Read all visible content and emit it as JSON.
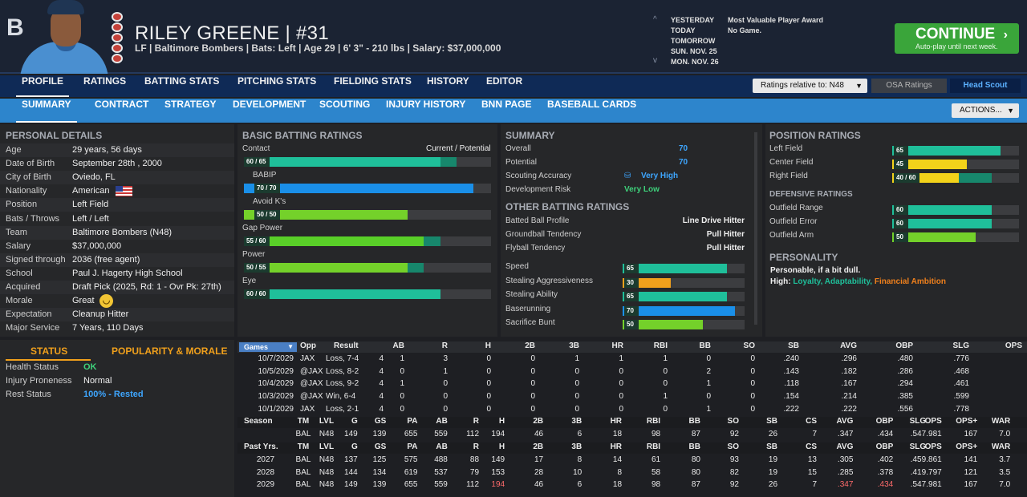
{
  "header": {
    "player_name": "RILEY GREENE  |  #31",
    "player_meta": "LF | Baltimore Bombers  |  Bats: Left  |  Age 29  |  6' 3\" - 210 lbs  |  Salary: $37,000,000",
    "logo": "B",
    "dates": [
      "YESTERDAY",
      "TODAY",
      "TOMORROW",
      "SUN. NOV. 25",
      "MON. NOV. 26"
    ],
    "events": [
      "Most Valuable Player Award",
      "No Game."
    ],
    "continue_label": "CONTINUE",
    "continue_sub": "Auto-play until next week."
  },
  "nav1": {
    "tabs": [
      "PROFILE",
      "RATINGS",
      "BATTING STATS",
      "PITCHING STATS",
      "FIELDING STATS",
      "HISTORY",
      "EDITOR"
    ],
    "ratings_relative": "Ratings relative to: N48",
    "osa": "OSA Ratings",
    "head_scout": "Head Scout"
  },
  "nav2": {
    "tabs": [
      "SUMMARY",
      "CONTRACT",
      "STRATEGY",
      "DEVELOPMENT",
      "SCOUTING",
      "INJURY HISTORY",
      "BNN PAGE",
      "BASEBALL CARDS"
    ],
    "actions": "ACTIONS..."
  },
  "personal": {
    "title": "PERSONAL DETAILS",
    "rows": [
      {
        "label": "Age",
        "value": "29 years, 56 days"
      },
      {
        "label": "Date of Birth",
        "value": "September 28th , 2000"
      },
      {
        "label": "City of Birth",
        "value": "Oviedo, FL"
      },
      {
        "label": "Nationality",
        "value": "American"
      },
      {
        "label": "Position",
        "value": "Left Field"
      },
      {
        "label": "Bats / Throws",
        "value": "Left / Left"
      },
      {
        "label": "Team",
        "value": "Baltimore Bombers (N48)"
      },
      {
        "label": "Salary",
        "value": "$37,000,000"
      },
      {
        "label": "Signed through",
        "value": "2036 (free agent)"
      },
      {
        "label": "School",
        "value": "Paul J. Hagerty High School"
      },
      {
        "label": "Acquired",
        "value": "Draft Pick (2025, Rd: 1 - Ovr Pk: 27th)"
      },
      {
        "label": "Morale",
        "value": "Great"
      },
      {
        "label": "Expectation",
        "value": "Cleanup Hitter"
      },
      {
        "label": "Major Service",
        "value": "7 Years, 110 Days"
      }
    ]
  },
  "status": {
    "tab_status": "STATUS",
    "tab_pop": "POPULARITY & MORALE",
    "rows": [
      {
        "label": "Health Status",
        "value": "OK"
      },
      {
        "label": "Injury Proneness",
        "value": "Normal"
      },
      {
        "label": "Rest Status",
        "value": "100% - Rested"
      }
    ]
  },
  "batting": {
    "title": "BASIC BATTING RATINGS",
    "cur_pot": "Current / Potential",
    "ratings": [
      {
        "name": "Contact",
        "chip": "60 / 65",
        "current": 60,
        "potential": 65,
        "color": "#1fbf9a"
      },
      {
        "name": "BABIP",
        "chip": "70 / 70",
        "current": 70,
        "potential": 70,
        "color": "#1a8fe8"
      },
      {
        "name": "Avoid K's",
        "chip": "50 / 50",
        "current": 50,
        "potential": 50,
        "color": "#74d12a"
      },
      {
        "name": "Gap Power",
        "chip": "55 / 60",
        "current": 55,
        "potential": 60,
        "color": "#59cf28"
      },
      {
        "name": "Power",
        "chip": "50 / 55",
        "current": 50,
        "potential": 55,
        "color": "#74d12a"
      },
      {
        "name": "Eye",
        "chip": "60 / 60",
        "current": 60,
        "potential": 60,
        "color": "#1fbf9a"
      }
    ]
  },
  "summary": {
    "title": "SUMMARY",
    "rows": [
      {
        "label": "Overall",
        "value": "70"
      },
      {
        "label": "Potential",
        "value": "70"
      },
      {
        "label": "Scouting Accuracy",
        "value": "Very High"
      },
      {
        "label": "Development Risk",
        "value": "Very Low"
      }
    ],
    "other_title": "OTHER BATTING RATINGS",
    "other": [
      {
        "label": "Batted Ball Profile",
        "value": "Line Drive Hitter"
      },
      {
        "label": "Groundball Tendency",
        "value": "Pull Hitter"
      },
      {
        "label": "Flyball Tendency",
        "value": "Pull Hitter"
      }
    ],
    "bars": [
      {
        "label": "Speed",
        "value": 65,
        "color": "#1fbf9a"
      },
      {
        "label": "Stealing Aggressiveness",
        "value": 30,
        "color": "#f0a01c"
      },
      {
        "label": "Stealing Ability",
        "value": 65,
        "color": "#1fbf9a"
      },
      {
        "label": "Baserunning",
        "value": 70,
        "color": "#1a8fe8"
      },
      {
        "label": "Sacrifice Bunt",
        "value": 50,
        "color": "#74d12a"
      }
    ]
  },
  "position": {
    "title": "POSITION RATINGS",
    "rows": [
      {
        "label": "Left Field",
        "chip": "65",
        "current": 65,
        "potential": 65,
        "color": "#1fbf9a"
      },
      {
        "label": "Center Field",
        "chip": "45",
        "current": 45,
        "potential": 45,
        "color": "#f2d21a"
      },
      {
        "label": "Right Field",
        "chip": "40 / 60",
        "current": 40,
        "potential": 60,
        "color": "#f2d21a"
      }
    ],
    "def_title": "DEFENSIVE RATINGS",
    "def": [
      {
        "label": "Outfield Range",
        "value": 60,
        "color": "#1fbf9a"
      },
      {
        "label": "Outfield Error",
        "value": 60,
        "color": "#1fbf9a"
      },
      {
        "label": "Outfield Arm",
        "value": 50,
        "color": "#74d12a"
      }
    ],
    "personality_title": "PERSONALITY",
    "personality_desc": "Personable, if a bit dull.",
    "high_label": "High:",
    "traits": [
      "Loyalty,",
      "Adaptability,",
      "Financial Ambition"
    ]
  },
  "games": {
    "dropdown": "Games",
    "headers": [
      "Opp",
      "Result",
      "AB",
      "R",
      "H",
      "2B",
      "3B",
      "HR",
      "RBI",
      "BB",
      "SO",
      "SB",
      "AVG",
      "OBP",
      "SLG",
      "OPS"
    ],
    "rows": [
      [
        "10/7/2029",
        "JAX",
        "Loss, 7-4",
        "4",
        "1",
        "3",
        "0",
        "0",
        "1",
        "1",
        "1",
        "0",
        "0",
        ".240",
        ".296",
        ".480",
        ".776"
      ],
      [
        "10/5/2029",
        "@JAX",
        "Loss, 8-2",
        "4",
        "0",
        "1",
        "0",
        "0",
        "0",
        "0",
        "0",
        "2",
        "0",
        ".143",
        ".182",
        ".286",
        ".468"
      ],
      [
        "10/4/2029",
        "@JAX",
        "Loss, 9-2",
        "4",
        "1",
        "0",
        "0",
        "0",
        "0",
        "0",
        "0",
        "1",
        "0",
        ".118",
        ".167",
        ".294",
        ".461"
      ],
      [
        "10/3/2029",
        "@JAX",
        "Win, 6-4",
        "4",
        "0",
        "0",
        "0",
        "0",
        "0",
        "0",
        "1",
        "0",
        "0",
        ".154",
        ".214",
        ".385",
        ".599"
      ],
      [
        "10/1/2029",
        "JAX",
        "Loss, 2-1",
        "4",
        "0",
        "0",
        "0",
        "0",
        "0",
        "0",
        "0",
        "1",
        "0",
        ".222",
        ".222",
        ".556",
        ".778"
      ]
    ]
  },
  "season": {
    "headers": [
      "Season",
      "TM",
      "LVL",
      "G",
      "GS",
      "PA",
      "AB",
      "R",
      "H",
      "2B",
      "3B",
      "HR",
      "RBI",
      "BB",
      "SO",
      "SB",
      "CS",
      "AVG",
      "OBP",
      "SLG",
      "OPS",
      "OPS+",
      "WAR"
    ],
    "row": [
      "",
      "BAL",
      "N48",
      "149",
      "139",
      "655",
      "559",
      "112",
      "194",
      "46",
      "6",
      "18",
      "98",
      "87",
      "92",
      "26",
      "7",
      ".347",
      ".434",
      ".547",
      ".981",
      "167",
      "7.0"
    ]
  },
  "past": {
    "headers": [
      "Past Yrs.",
      "TM",
      "LVL",
      "G",
      "GS",
      "PA",
      "AB",
      "R",
      "H",
      "2B",
      "3B",
      "HR",
      "RBI",
      "BB",
      "SO",
      "SB",
      "CS",
      "AVG",
      "OBP",
      "SLG",
      "OPS",
      "OPS+",
      "WAR"
    ],
    "rows": [
      [
        "2027",
        "BAL",
        "N48",
        "137",
        "125",
        "575",
        "488",
        "88",
        "149",
        "17",
        "8",
        "14",
        "61",
        "80",
        "93",
        "19",
        "13",
        ".305",
        ".402",
        ".459",
        ".861",
        "141",
        "3.7"
      ],
      [
        "2028",
        "BAL",
        "N48",
        "144",
        "134",
        "619",
        "537",
        "79",
        "153",
        "28",
        "10",
        "8",
        "58",
        "80",
        "82",
        "19",
        "15",
        ".285",
        ".378",
        ".419",
        ".797",
        "121",
        "3.5"
      ],
      [
        "2029",
        "BAL",
        "N48",
        "149",
        "139",
        "655",
        "559",
        "112",
        "194",
        "46",
        "6",
        "18",
        "98",
        "87",
        "92",
        "26",
        "7",
        ".347",
        ".434",
        ".547",
        ".981",
        "167",
        "7.0"
      ]
    ]
  }
}
